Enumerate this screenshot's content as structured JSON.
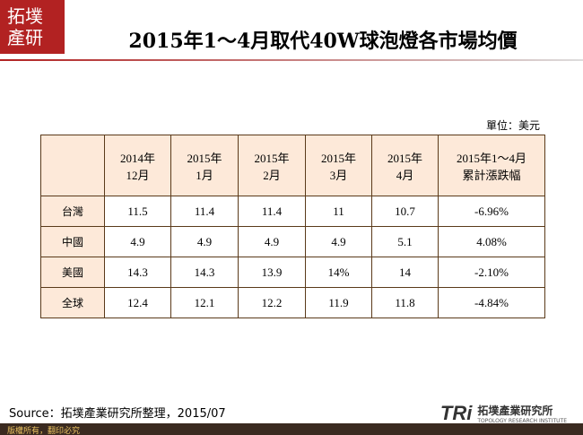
{
  "logo": {
    "lines": [
      "拓墣",
      "產研"
    ]
  },
  "title": "2015年1～4月取代40W球泡燈各市場均價",
  "unit": "單位：美元",
  "table": {
    "headers": [
      [
        "2014年",
        "12月"
      ],
      [
        "2015年",
        "1月"
      ],
      [
        "2015年",
        "2月"
      ],
      [
        "2015年",
        "3月"
      ],
      [
        "2015年",
        "4月"
      ],
      [
        "2015年1～4月",
        "累計漲跌幅"
      ]
    ],
    "rows": [
      [
        "台灣",
        "11.5",
        "11.4",
        "11.4",
        "11",
        "10.7",
        "-6.96%"
      ],
      [
        "中國",
        "4.9",
        "4.9",
        "4.9",
        "4.9",
        "5.1",
        "4.08%"
      ],
      [
        "美國",
        "14.3",
        "14.3",
        "13.9",
        "14%",
        "14",
        "-2.10%"
      ],
      [
        "全球",
        "12.4",
        "12.1",
        "12.2",
        "11.9",
        "11.8",
        "-4.84%"
      ]
    ]
  },
  "source": "Source：拓墣產業研究所整理，2015/07",
  "footer": "版權所有，翻印必究",
  "brand": {
    "mark": "TRi",
    "name": "拓墣產業研究所",
    "name_en": "TOPOLOGY RESEARCH INSTITUTE"
  }
}
